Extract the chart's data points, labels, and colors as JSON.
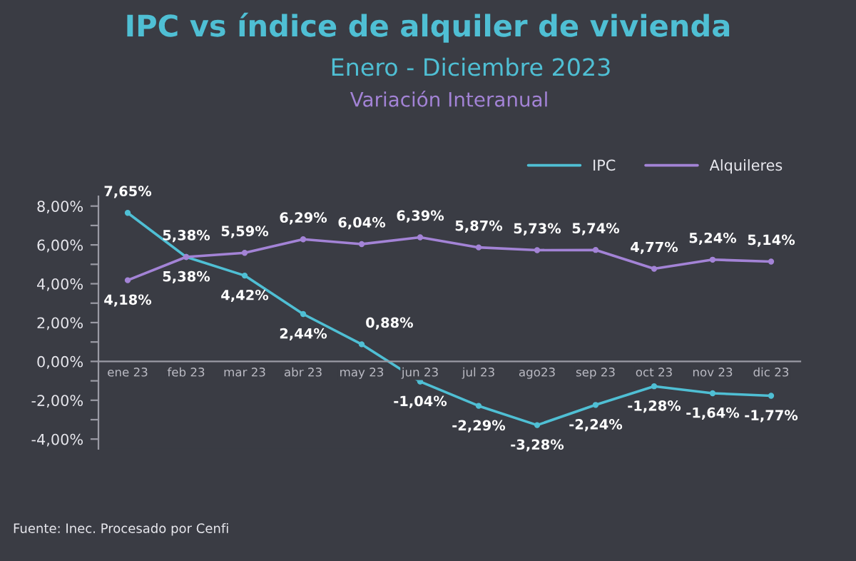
{
  "chart_data": {
    "type": "line",
    "title": "IPC vs índice de alquiler de vivienda",
    "subtitle": "Enero - Diciembre 2023",
    "annotations": [
      "Variación Interanual",
      "Fuente: Inec. Procesado por Cenfi"
    ],
    "categories": [
      "ene 23",
      "feb 23",
      "mar 23",
      "abr 23",
      "may 23",
      "jun 23",
      "jul 23",
      "ago23",
      "sep 23",
      "oct 23",
      "nov 23",
      "dic 23"
    ],
    "series": [
      {
        "name": "IPC",
        "color": "#4fbfd4",
        "values": [
          7.65,
          5.38,
          4.42,
          2.44,
          0.88,
          -1.04,
          -2.29,
          -3.28,
          -2.24,
          -1.28,
          -1.64,
          -1.77
        ],
        "value_labels": [
          "7,65%",
          "5,38%",
          "4,42%",
          "2,44%",
          "0,88%",
          "-1,04%",
          "-2,29%",
          "-3,28%",
          "-2,24%",
          "-1,28%",
          "-1,64%",
          "-1,77%"
        ]
      },
      {
        "name": "Alquileres",
        "color": "#a383d6",
        "values": [
          4.18,
          5.38,
          5.59,
          6.29,
          6.04,
          6.39,
          5.87,
          5.73,
          5.74,
          4.77,
          5.24,
          5.14
        ],
        "value_labels": [
          "4,18%",
          "5,38%",
          "5,59%",
          "6,29%",
          "6,04%",
          "6,39%",
          "5,87%",
          "5,73%",
          "5,74%",
          "4,77%",
          "5,24%",
          "5,14%"
        ]
      }
    ],
    "ylim": [
      -4.5,
      8.5
    ],
    "yticks": [
      {
        "value": -4,
        "label": "-4,00%"
      },
      {
        "value": -3,
        "label": null
      },
      {
        "value": -2,
        "label": "-2,00%"
      },
      {
        "value": -1,
        "label": null
      },
      {
        "value": 0,
        "label": "0,00%"
      },
      {
        "value": 1,
        "label": null
      },
      {
        "value": 2,
        "label": "2,00%"
      },
      {
        "value": 3,
        "label": null
      },
      {
        "value": 4,
        "label": "4,00%"
      },
      {
        "value": 5,
        "label": null
      },
      {
        "value": 6,
        "label": "6,00%"
      },
      {
        "value": 7,
        "label": null
      },
      {
        "value": 8,
        "label": "8,00%"
      }
    ],
    "legend": "top right",
    "grid": false,
    "marker": "circle"
  }
}
